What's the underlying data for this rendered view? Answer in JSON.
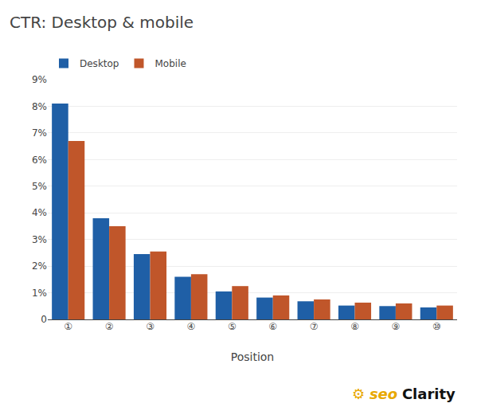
{
  "chart_data": {
    "type": "bar",
    "title": "CTR: Desktop & mobile",
    "xlabel": "Position",
    "categories": [
      "①",
      "②",
      "③",
      "④",
      "⑤",
      "⑥",
      "⑦",
      "⑧",
      "⑨",
      "⑩"
    ],
    "series": [
      {
        "name": "Desktop",
        "color": "#1f5fa6",
        "values": [
          8.1,
          3.8,
          2.45,
          1.6,
          1.05,
          0.82,
          0.68,
          0.52,
          0.5,
          0.45
        ]
      },
      {
        "name": "Mobile",
        "color": "#c0562a",
        "values": [
          6.7,
          3.5,
          2.55,
          1.7,
          1.25,
          0.9,
          0.75,
          0.63,
          0.6,
          0.52
        ]
      }
    ],
    "ylim": [
      0,
      9
    ],
    "yticks": [
      0,
      {
        "value": 1,
        "label": "1%"
      },
      {
        "value": 2,
        "label": "2%"
      },
      {
        "value": 3,
        "label": "3%"
      },
      {
        "value": 4,
        "label": "4%"
      },
      {
        "value": 5,
        "label": "5%"
      },
      {
        "value": 6,
        "label": "6%"
      },
      {
        "value": 7,
        "label": "7%"
      },
      {
        "value": 8,
        "label": "8%"
      },
      {
        "value": 9,
        "label": "9%"
      }
    ],
    "grid": true,
    "legend": "top",
    "annotations": [
      {
        "text": "⚙",
        "color": "#e8a800"
      },
      {
        "text": "seo",
        "color": "#e8a800"
      },
      {
        "text": "Clarity",
        "color": "#111111"
      }
    ]
  }
}
